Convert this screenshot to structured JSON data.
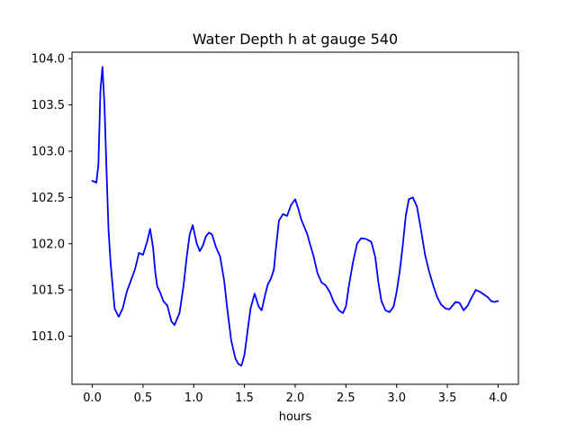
{
  "chart_data": {
    "type": "line",
    "title": "Water Depth h at gauge 540",
    "xlabel": "hours",
    "ylabel": "",
    "xlim": [
      -0.2,
      4.2
    ],
    "ylim": [
      100.48,
      104.07
    ],
    "xticks": [
      0.0,
      0.5,
      1.0,
      1.5,
      2.0,
      2.5,
      3.0,
      3.5,
      4.0
    ],
    "xtick_labels": [
      "0.0",
      "0.5",
      "1.0",
      "1.5",
      "2.0",
      "2.5",
      "3.0",
      "3.5",
      "4.0"
    ],
    "yticks": [
      101.0,
      101.5,
      102.0,
      102.5,
      103.0,
      103.5,
      104.0
    ],
    "ytick_labels": [
      "101.0",
      "101.5",
      "102.0",
      "102.5",
      "103.0",
      "103.5",
      "104.0"
    ],
    "grid": false,
    "series": [
      {
        "color": "#0000ff",
        "x": [
          0.0,
          0.04,
          0.06,
          0.08,
          0.1,
          0.12,
          0.14,
          0.16,
          0.18,
          0.22,
          0.26,
          0.3,
          0.34,
          0.38,
          0.42,
          0.46,
          0.5,
          0.54,
          0.57,
          0.6,
          0.62,
          0.64,
          0.67,
          0.7,
          0.74,
          0.78,
          0.81,
          0.84,
          0.86,
          0.9,
          0.93,
          0.96,
          0.99,
          1.03,
          1.06,
          1.09,
          1.12,
          1.15,
          1.18,
          1.22,
          1.26,
          1.3,
          1.33,
          1.37,
          1.41,
          1.44,
          1.47,
          1.5,
          1.53,
          1.56,
          1.6,
          1.64,
          1.67,
          1.7,
          1.73,
          1.76,
          1.79,
          1.81,
          1.84,
          1.88,
          1.92,
          1.96,
          2.0,
          2.03,
          2.06,
          2.09,
          2.12,
          2.15,
          2.18,
          2.22,
          2.26,
          2.3,
          2.34,
          2.38,
          2.43,
          2.47,
          2.5,
          2.53,
          2.57,
          2.61,
          2.65,
          2.7,
          2.75,
          2.79,
          2.82,
          2.85,
          2.89,
          2.93,
          2.97,
          3.0,
          3.03,
          3.06,
          3.09,
          3.12,
          3.16,
          3.2,
          3.24,
          3.28,
          3.32,
          3.36,
          3.4,
          3.44,
          3.48,
          3.52,
          3.55,
          3.58,
          3.62,
          3.66,
          3.7,
          3.74,
          3.78,
          3.82,
          3.86,
          3.9,
          3.93,
          3.96,
          4.0
        ],
        "y": [
          102.68,
          102.66,
          102.85,
          103.65,
          103.91,
          103.5,
          102.8,
          102.15,
          101.8,
          101.3,
          101.21,
          101.3,
          101.48,
          101.6,
          101.72,
          101.9,
          101.88,
          102.02,
          102.16,
          101.95,
          101.7,
          101.54,
          101.47,
          101.38,
          101.33,
          101.16,
          101.12,
          101.2,
          101.25,
          101.55,
          101.85,
          102.1,
          102.2,
          102.0,
          101.92,
          101.98,
          102.08,
          102.12,
          102.1,
          101.96,
          101.86,
          101.6,
          101.3,
          100.95,
          100.76,
          100.7,
          100.68,
          100.8,
          101.05,
          101.3,
          101.46,
          101.32,
          101.28,
          101.43,
          101.56,
          101.62,
          101.72,
          101.95,
          102.25,
          102.32,
          102.3,
          102.42,
          102.48,
          102.38,
          102.26,
          102.18,
          102.1,
          101.98,
          101.87,
          101.68,
          101.58,
          101.55,
          101.48,
          101.37,
          101.28,
          101.25,
          101.32,
          101.55,
          101.8,
          102.0,
          102.06,
          102.05,
          102.02,
          101.85,
          101.58,
          101.38,
          101.28,
          101.26,
          101.32,
          101.48,
          101.7,
          101.98,
          102.3,
          102.48,
          102.5,
          102.4,
          102.15,
          101.88,
          101.7,
          101.55,
          101.42,
          101.34,
          101.3,
          101.29,
          101.33,
          101.37,
          101.36,
          101.28,
          101.33,
          101.42,
          101.5,
          101.48,
          101.45,
          101.42,
          101.38,
          101.37,
          101.38
        ]
      }
    ]
  }
}
